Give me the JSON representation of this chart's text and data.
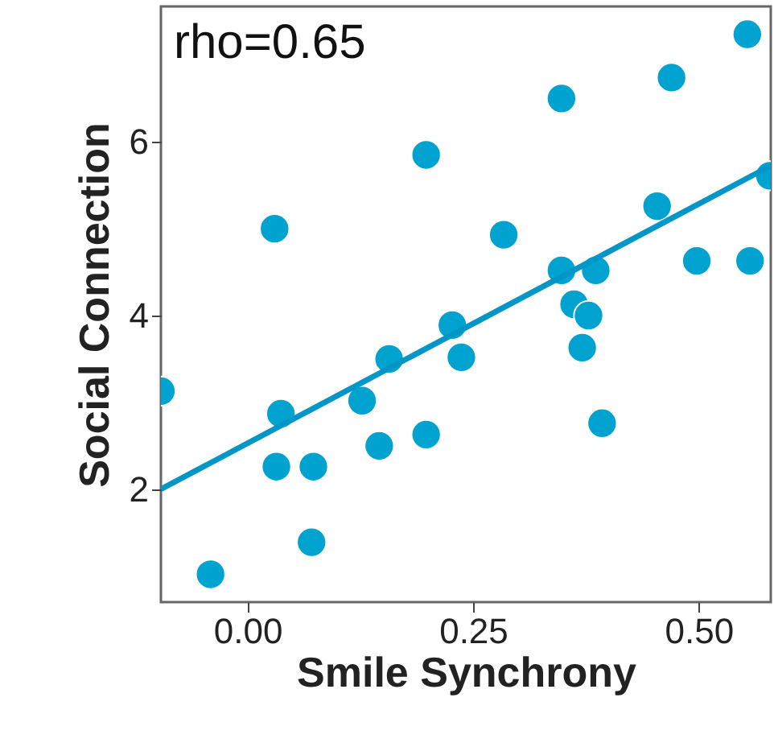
{
  "chart_data": {
    "type": "scatter",
    "xlabel": "Smile Synchrony",
    "ylabel": "Social Connection",
    "annotations": [
      "rho=0.65"
    ],
    "xlim": [
      -0.096,
      0.58
    ],
    "ylim": [
      0.7,
      7.56
    ],
    "xticks": [
      {
        "value": 0,
        "label": "0.00"
      },
      {
        "value": 0.25,
        "label": "0.25"
      },
      {
        "value": 0.5,
        "label": "0.50"
      }
    ],
    "yticks": [
      2,
      4,
      6
    ],
    "grid": false,
    "marker": "circle",
    "series": [
      {
        "color": "#00a2d0",
        "x": [
          -0.096,
          -0.041,
          0.03,
          0.037,
          0.032,
          0.073,
          0.071,
          0.127,
          0.146,
          0.157,
          0.198,
          0.198,
          0.227,
          0.237,
          0.284,
          0.348,
          0.348,
          0.362,
          0.378,
          0.371,
          0.386,
          0.393,
          0.454,
          0.47,
          0.498,
          0.557,
          0.554,
          0.579
        ],
        "values": [
          3.13,
          1.02,
          5.0,
          2.87,
          2.26,
          2.26,
          1.39,
          3.02,
          2.5,
          3.5,
          2.63,
          5.85,
          3.89,
          3.52,
          4.93,
          6.5,
          4.52,
          4.13,
          4.0,
          3.63,
          4.52,
          2.76,
          5.26,
          6.74,
          4.63,
          4.63,
          7.24,
          5.61
        ]
      },
      {
        "type": "line",
        "marker": "none",
        "color": "#0096c8",
        "x": [
          -0.096,
          0.579
        ],
        "values": [
          2.0,
          5.72
        ]
      }
    ]
  }
}
